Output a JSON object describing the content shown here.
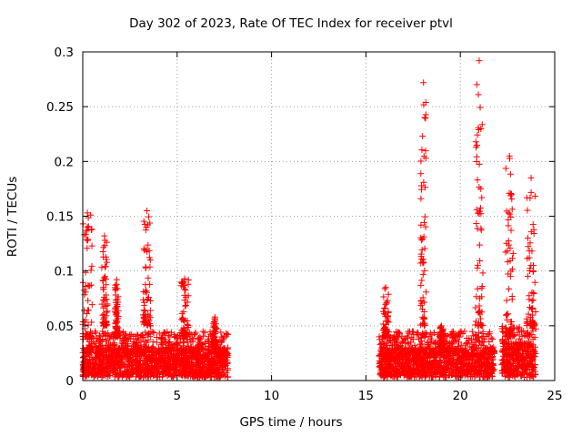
{
  "chart_data": {
    "type": "scatter",
    "title": "Day 302 of 2023, Rate Of TEC Index for receiver ptvl",
    "xlabel": "GPS time / hours",
    "ylabel": "ROTI / TECUs",
    "xlim": [
      0,
      25
    ],
    "ylim": [
      0,
      0.3
    ],
    "xticks": [
      0,
      5,
      10,
      15,
      20,
      25
    ],
    "yticks": [
      0,
      0.05,
      0.1,
      0.15,
      0.2,
      0.25,
      0.3
    ],
    "grid": true,
    "marker": "+",
    "series_color": "#ff0000",
    "clusters": [
      {
        "x": [
          0.0,
          7.7
        ],
        "base_y": [
          0.003,
          0.03
        ],
        "dense_max": 0.045
      },
      {
        "x": [
          15.7,
          21.8
        ],
        "base_y": [
          0.003,
          0.03
        ],
        "dense_max": 0.045
      },
      {
        "x": [
          22.2,
          24.0
        ],
        "base_y": [
          0.003,
          0.035
        ],
        "dense_max": 0.05
      }
    ],
    "peaks": [
      {
        "x": [
          0.0,
          0.5
        ],
        "y": [
          0.04,
          0.153
        ]
      },
      {
        "x": [
          1.0,
          1.3
        ],
        "y": [
          0.05,
          0.132
        ]
      },
      {
        "x": [
          1.7,
          1.9
        ],
        "y": [
          0.04,
          0.092
        ]
      },
      {
        "x": [
          3.2,
          3.6
        ],
        "y": [
          0.05,
          0.155
        ]
      },
      {
        "x": [
          5.2,
          5.6
        ],
        "y": [
          0.04,
          0.093
        ]
      },
      {
        "x": [
          6.9,
          7.1
        ],
        "y": [
          0.03,
          0.058
        ]
      },
      {
        "x": [
          15.9,
          16.2
        ],
        "y": [
          0.04,
          0.085
        ]
      },
      {
        "x": [
          17.9,
          18.2
        ],
        "y": [
          0.05,
          0.272
        ]
      },
      {
        "x": [
          18.9,
          19.1
        ],
        "y": [
          0.03,
          0.05
        ]
      },
      {
        "x": [
          20.8,
          21.2
        ],
        "y": [
          0.05,
          0.292
        ]
      },
      {
        "x": [
          22.4,
          22.8
        ],
        "y": [
          0.04,
          0.205
        ]
      },
      {
        "x": [
          23.5,
          24.0
        ],
        "y": [
          0.05,
          0.185
        ]
      }
    ]
  }
}
